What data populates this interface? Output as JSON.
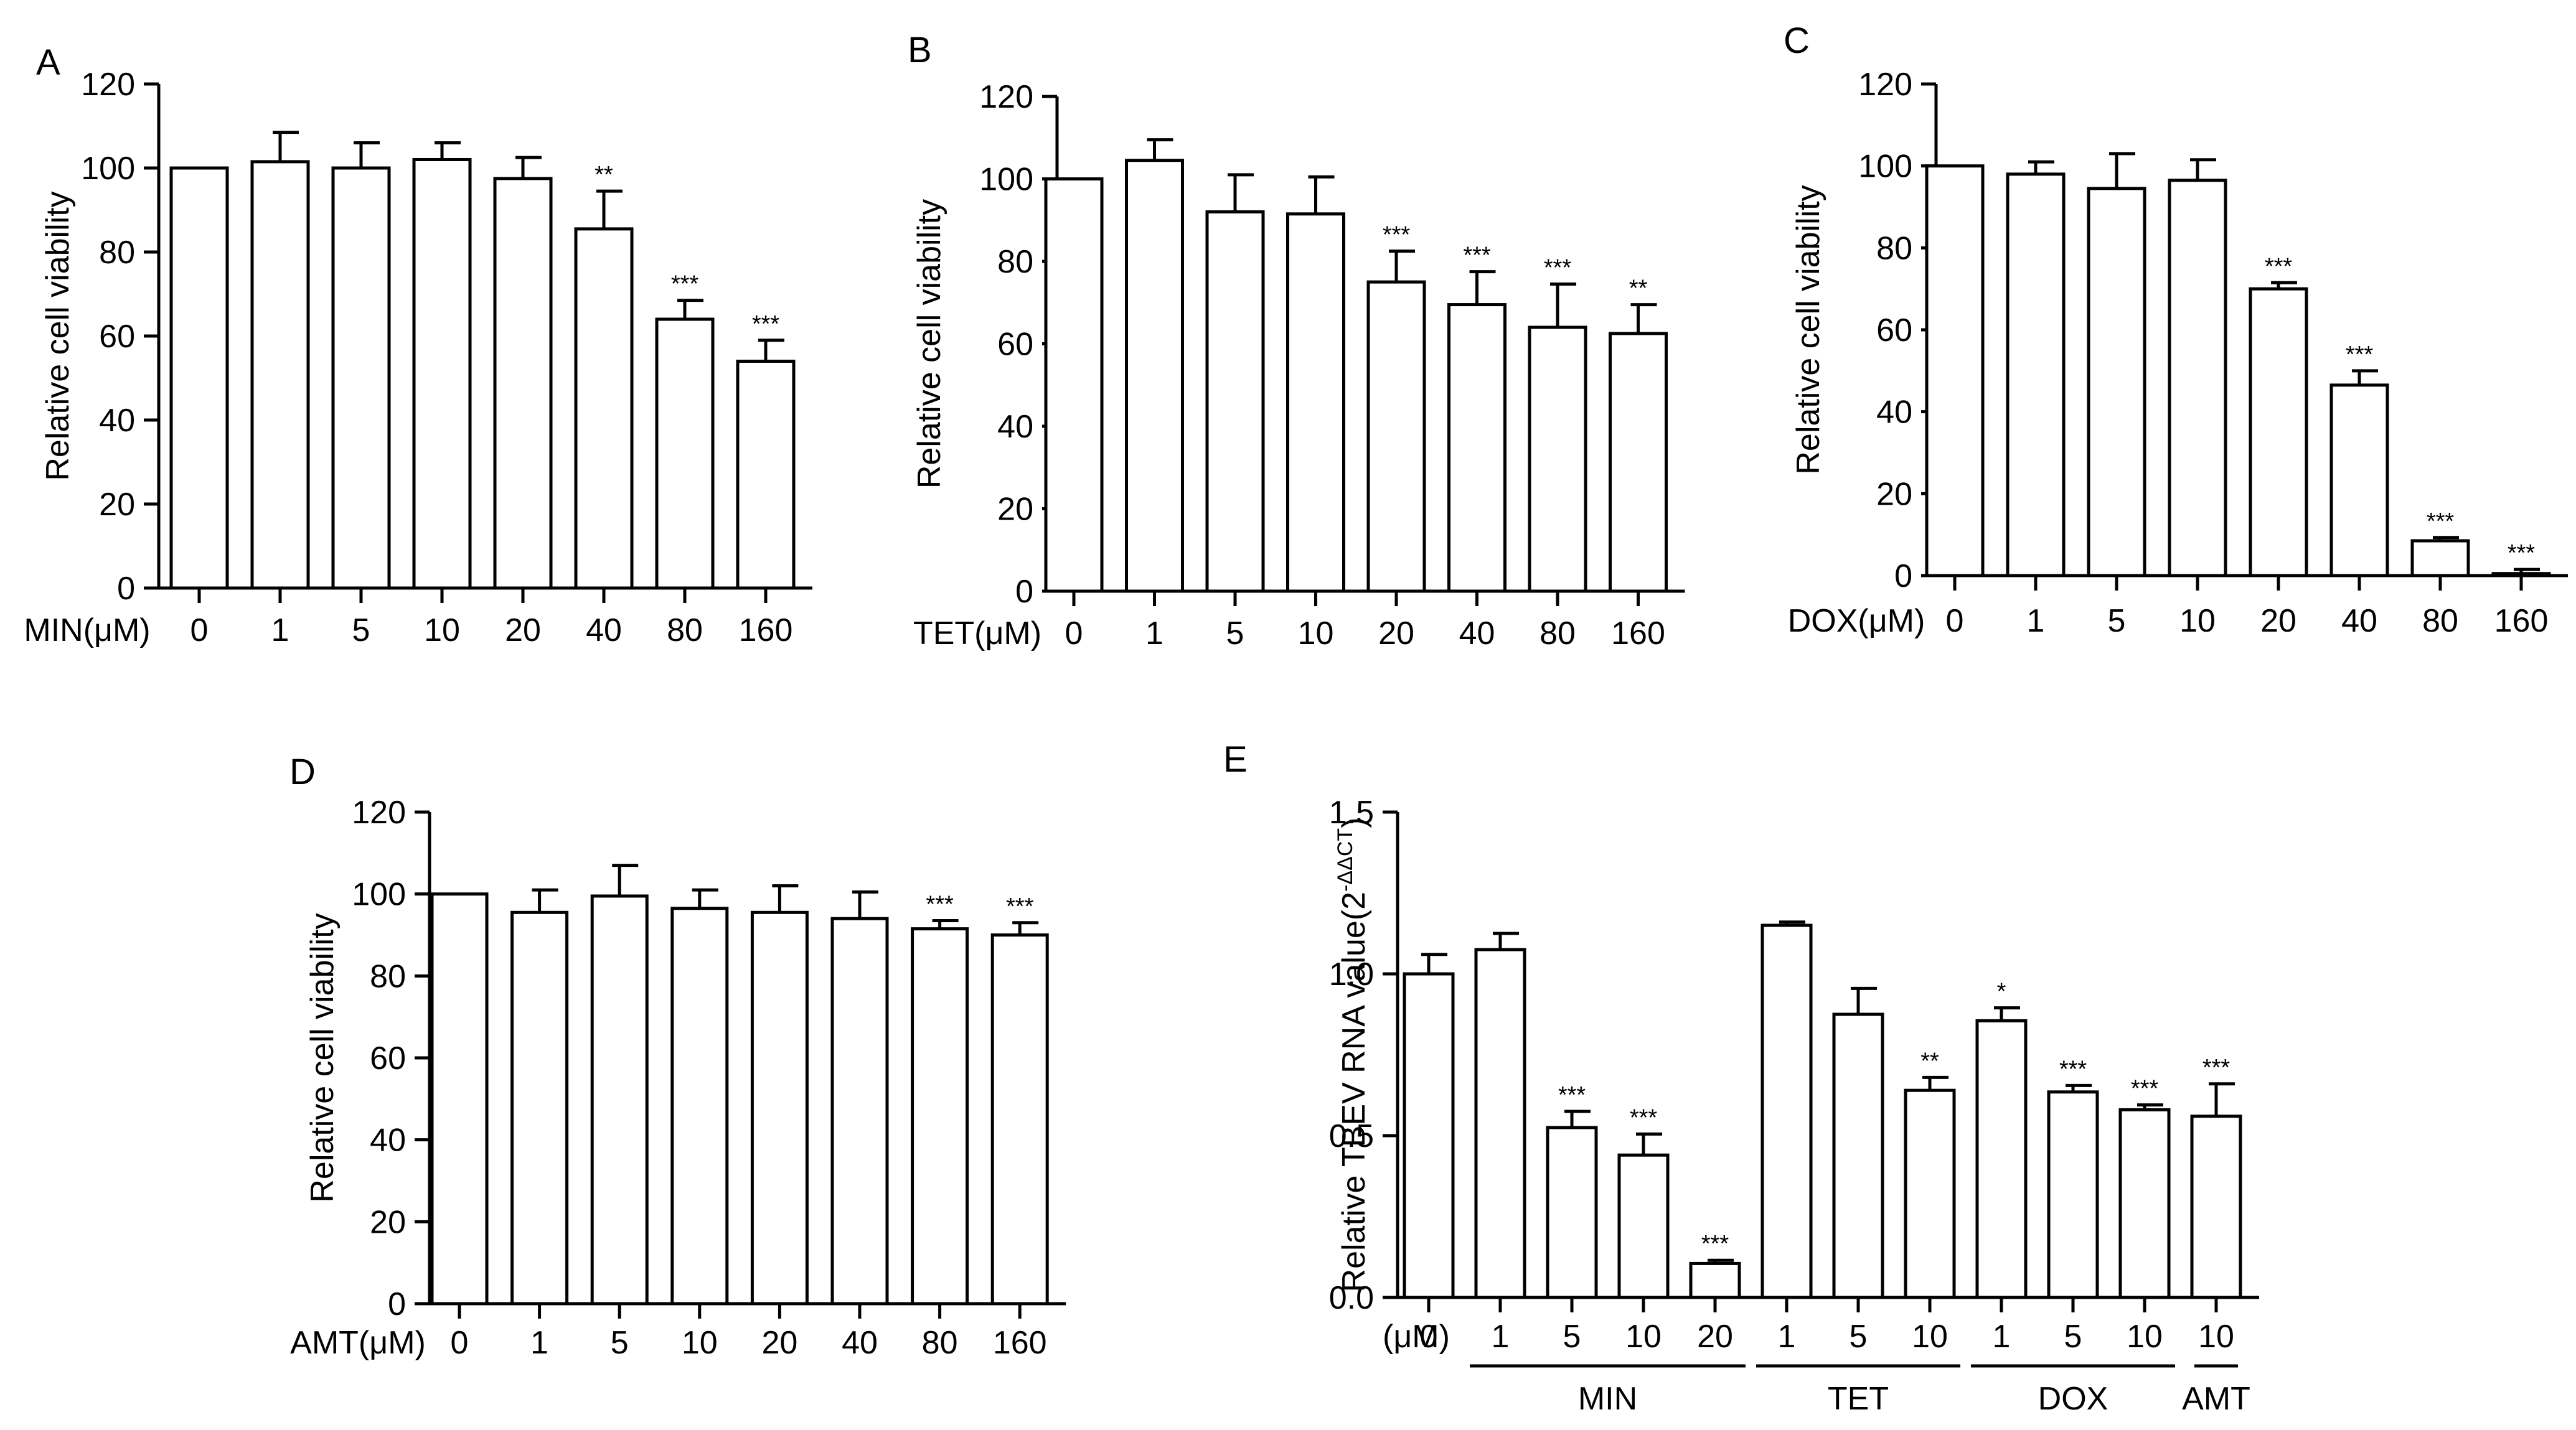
{
  "chart_data": [
    {
      "panel": "A",
      "type": "bar",
      "xlabel_prefix": "MIN(μM)",
      "ylabel": "Relative cell viability",
      "ylim": [
        0,
        120
      ],
      "yticks": [
        0,
        20,
        40,
        60,
        80,
        100,
        120
      ],
      "categories": [
        "0",
        "1",
        "5",
        "10",
        "20",
        "40",
        "80",
        "160"
      ],
      "values": [
        100,
        101.5,
        100,
        102,
        97.5,
        85.5,
        64,
        54
      ],
      "errors": [
        0,
        7,
        6,
        4,
        5,
        9,
        4.5,
        5
      ],
      "significance": [
        "",
        "",
        "",
        "",
        "",
        "**",
        "***",
        "***"
      ]
    },
    {
      "panel": "B",
      "type": "bar",
      "xlabel_prefix": "TET(μM)",
      "ylabel": "Relative cell viability",
      "ylim": [
        0,
        120
      ],
      "yticks": [
        0,
        20,
        40,
        60,
        80,
        100,
        120
      ],
      "categories": [
        "0",
        "1",
        "5",
        "10",
        "20",
        "40",
        "80",
        "160"
      ],
      "values": [
        100,
        104.5,
        92,
        91.5,
        75,
        69.5,
        64,
        62.5
      ],
      "errors": [
        0,
        5,
        9,
        9,
        7.5,
        8,
        10.5,
        7
      ],
      "significance": [
        "",
        "",
        "",
        "",
        "***",
        "***",
        "***",
        "**"
      ]
    },
    {
      "panel": "C",
      "type": "bar",
      "xlabel_prefix": "DOX(μM)",
      "ylabel": "Relative cell viability",
      "ylim": [
        0,
        120
      ],
      "yticks": [
        0,
        20,
        40,
        60,
        80,
        100,
        120
      ],
      "categories": [
        "0",
        "1",
        "5",
        "10",
        "20",
        "40",
        "80",
        "160"
      ],
      "values": [
        100,
        98,
        94.5,
        96.5,
        70,
        46.5,
        8.5,
        0.5
      ],
      "errors": [
        0,
        3,
        8.5,
        5,
        1.5,
        3.5,
        0.8,
        1
      ],
      "significance": [
        "",
        "",
        "",
        "",
        "***",
        "***",
        "***",
        "***"
      ]
    },
    {
      "panel": "D",
      "type": "bar",
      "xlabel_prefix": "AMT(μM)",
      "ylabel": "Relative cell viability",
      "ylim": [
        0,
        120
      ],
      "yticks": [
        0,
        20,
        40,
        60,
        80,
        100,
        120
      ],
      "categories": [
        "0",
        "1",
        "5",
        "10",
        "20",
        "40",
        "80",
        "160"
      ],
      "values": [
        100,
        95.5,
        99.5,
        96.5,
        95.5,
        94,
        91.5,
        90
      ],
      "errors": [
        0,
        5.5,
        7.5,
        4.5,
        6.5,
        6.5,
        2,
        3
      ],
      "significance": [
        "",
        "",
        "",
        "",
        "",
        "",
        "***",
        "***"
      ]
    },
    {
      "panel": "E",
      "type": "bar",
      "xlabel_prefix": "(μM)",
      "ylabel_main": "Relative TBEV RNA value(2",
      "ylabel_sup": "-ΔΔCT",
      "ylabel_close": ")",
      "ylim": [
        0,
        1.5
      ],
      "yticks": [
        "0.0",
        "0.5",
        "1.0",
        "1.5"
      ],
      "categories": [
        "0",
        "1",
        "5",
        "10",
        "20",
        "1",
        "5",
        "10",
        "1",
        "5",
        "10",
        "10"
      ],
      "values": [
        1.0,
        1.075,
        0.525,
        0.44,
        0.105,
        1.15,
        0.875,
        0.64,
        0.855,
        0.635,
        0.58,
        0.56
      ],
      "errors": [
        0.06,
        0.05,
        0.05,
        0.065,
        0.01,
        0.01,
        0.08,
        0.04,
        0.04,
        0.02,
        0.015,
        0.1
      ],
      "significance": [
        "",
        "",
        "***",
        "***",
        "***",
        "",
        "",
        "**",
        "*",
        "***",
        "***",
        "***"
      ],
      "groups": [
        {
          "label": "MIN",
          "from": 1,
          "to": 4
        },
        {
          "label": "TET",
          "from": 5,
          "to": 7
        },
        {
          "label": "DOX",
          "from": 8,
          "to": 10
        },
        {
          "label": "AMT",
          "from": 11,
          "to": 11
        }
      ]
    }
  ]
}
